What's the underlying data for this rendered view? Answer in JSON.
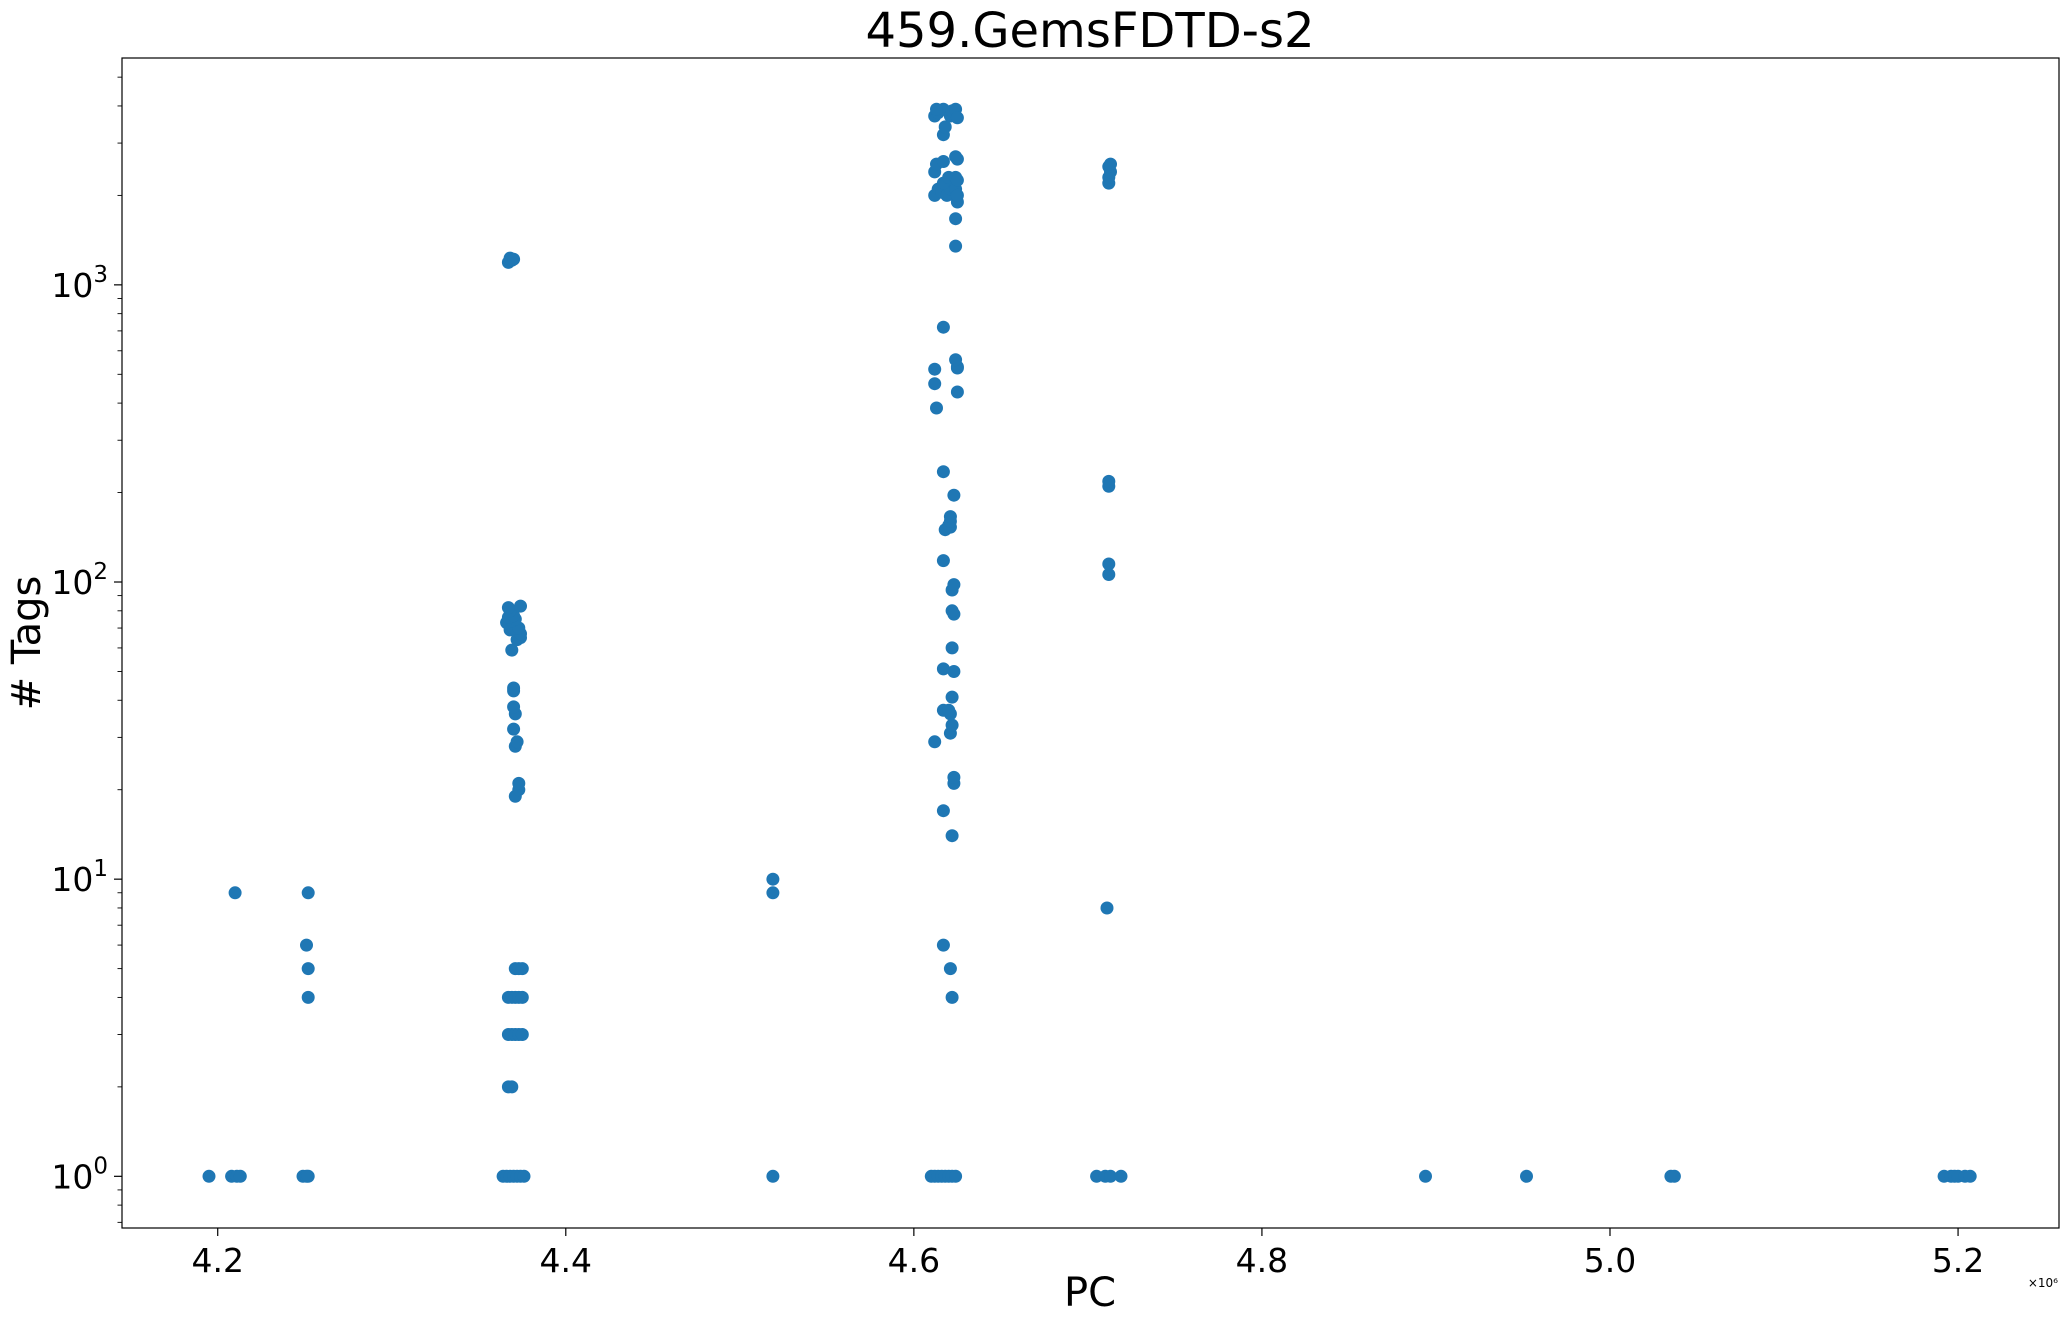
{
  "chart_data": {
    "type": "scatter",
    "title": "459.GemsFDTD-s2",
    "xlabel": "PC",
    "ylabel": "# Tags",
    "x_offset_label": "×10⁶",
    "x_ticks": [
      "4.2",
      "4.4",
      "4.6",
      "4.8",
      "5.0",
      "5.2"
    ],
    "x_tick_values": [
      4.2,
      4.4,
      4.6,
      4.8,
      5.0,
      5.2
    ],
    "y_ticks": [
      {
        "value": 1,
        "base": "10",
        "exp": "0"
      },
      {
        "value": 10,
        "base": "10",
        "exp": "1"
      },
      {
        "value": 100,
        "base": "10",
        "exp": "2"
      },
      {
        "value": 1000,
        "base": "10",
        "exp": "3"
      }
    ],
    "y_scale": "log",
    "xlim": [
      4.145,
      5.258
    ],
    "ylim": [
      0.67,
      5800
    ],
    "grid": false,
    "marker_color": "#1f77b4",
    "points": [
      [
        4.195,
        1
      ],
      [
        4.208,
        1
      ],
      [
        4.211,
        1
      ],
      [
        4.213,
        1
      ],
      [
        4.21,
        9
      ],
      [
        4.249,
        1
      ],
      [
        4.251,
        1
      ],
      [
        4.252,
        1
      ],
      [
        4.251,
        6
      ],
      [
        4.252,
        5
      ],
      [
        4.252,
        4
      ],
      [
        4.252,
        9
      ],
      [
        4.364,
        1
      ],
      [
        4.366,
        1
      ],
      [
        4.368,
        1
      ],
      [
        4.37,
        1
      ],
      [
        4.372,
        1
      ],
      [
        4.374,
        1
      ],
      [
        4.376,
        1
      ],
      [
        4.367,
        2
      ],
      [
        4.369,
        2
      ],
      [
        4.367,
        3
      ],
      [
        4.369,
        3
      ],
      [
        4.371,
        3
      ],
      [
        4.373,
        3
      ],
      [
        4.375,
        3
      ],
      [
        4.367,
        4
      ],
      [
        4.369,
        4
      ],
      [
        4.371,
        4
      ],
      [
        4.373,
        4
      ],
      [
        4.375,
        4
      ],
      [
        4.371,
        5
      ],
      [
        4.373,
        5
      ],
      [
        4.375,
        5
      ],
      [
        4.371,
        19
      ],
      [
        4.373,
        20
      ],
      [
        4.373,
        21
      ],
      [
        4.371,
        28
      ],
      [
        4.372,
        29
      ],
      [
        4.37,
        32
      ],
      [
        4.371,
        36
      ],
      [
        4.37,
        38
      ],
      [
        4.37,
        43
      ],
      [
        4.37,
        44
      ],
      [
        4.369,
        59
      ],
      [
        4.372,
        64
      ],
      [
        4.374,
        65
      ],
      [
        4.374,
        67
      ],
      [
        4.368,
        69
      ],
      [
        4.37,
        70
      ],
      [
        4.373,
        70
      ],
      [
        4.366,
        73
      ],
      [
        4.369,
        74
      ],
      [
        4.371,
        75
      ],
      [
        4.367,
        76
      ],
      [
        4.37,
        77
      ],
      [
        4.368,
        80
      ],
      [
        4.367,
        82
      ],
      [
        4.374,
        83
      ],
      [
        4.367,
        1190
      ],
      [
        4.369,
        1210
      ],
      [
        4.368,
        1230
      ],
      [
        4.37,
        1220
      ],
      [
        4.519,
        1
      ],
      [
        4.519,
        9
      ],
      [
        4.519,
        10
      ],
      [
        4.61,
        1
      ],
      [
        4.612,
        1
      ],
      [
        4.614,
        1
      ],
      [
        4.616,
        1
      ],
      [
        4.618,
        1
      ],
      [
        4.62,
        1
      ],
      [
        4.622,
        1
      ],
      [
        4.624,
        1
      ],
      [
        4.622,
        4
      ],
      [
        4.621,
        5
      ],
      [
        4.617,
        6
      ],
      [
        4.622,
        14
      ],
      [
        4.617,
        17
      ],
      [
        4.623,
        21
      ],
      [
        4.623,
        22
      ],
      [
        4.612,
        29
      ],
      [
        4.621,
        31
      ],
      [
        4.622,
        33
      ],
      [
        4.621,
        36
      ],
      [
        4.617,
        37
      ],
      [
        4.62,
        37
      ],
      [
        4.622,
        41
      ],
      [
        4.623,
        50
      ],
      [
        4.617,
        51
      ],
      [
        4.622,
        60
      ],
      [
        4.623,
        78
      ],
      [
        4.622,
        80
      ],
      [
        4.622,
        94
      ],
      [
        4.623,
        98
      ],
      [
        4.617,
        118
      ],
      [
        4.618,
        150
      ],
      [
        4.62,
        155
      ],
      [
        4.621,
        153
      ],
      [
        4.621,
        160
      ],
      [
        4.621,
        166
      ],
      [
        4.623,
        196
      ],
      [
        4.617,
        235
      ],
      [
        4.613,
        385
      ],
      [
        4.625,
        436
      ],
      [
        4.612,
        465
      ],
      [
        4.612,
        520
      ],
      [
        4.625,
        525
      ],
      [
        4.625,
        530
      ],
      [
        4.624,
        560
      ],
      [
        4.617,
        720
      ],
      [
        4.624,
        1350
      ],
      [
        4.624,
        1670
      ],
      [
        4.612,
        2000
      ],
      [
        4.625,
        1900
      ],
      [
        4.614,
        2100
      ],
      [
        4.616,
        2050
      ],
      [
        4.619,
        2000
      ],
      [
        4.621,
        2100
      ],
      [
        4.624,
        2100
      ],
      [
        4.625,
        2000
      ],
      [
        4.617,
        2200
      ],
      [
        4.612,
        2400
      ],
      [
        4.62,
        2300
      ],
      [
        4.624,
        2300
      ],
      [
        4.625,
        2250
      ],
      [
        4.613,
        2550
      ],
      [
        4.617,
        2600
      ],
      [
        4.624,
        2700
      ],
      [
        4.625,
        2650
      ],
      [
        4.617,
        3200
      ],
      [
        4.618,
        3400
      ],
      [
        4.612,
        3700
      ],
      [
        4.614,
        3800
      ],
      [
        4.617,
        3900
      ],
      [
        4.621,
        3700
      ],
      [
        4.622,
        3850
      ],
      [
        4.624,
        3900
      ],
      [
        4.625,
        3650
      ],
      [
        4.613,
        3900
      ],
      [
        4.705,
        1
      ],
      [
        4.71,
        1
      ],
      [
        4.713,
        1
      ],
      [
        4.719,
        1
      ],
      [
        4.711,
        8
      ],
      [
        4.712,
        106
      ],
      [
        4.712,
        115
      ],
      [
        4.712,
        210
      ],
      [
        4.712,
        218
      ],
      [
        4.712,
        2200
      ],
      [
        4.712,
        2300
      ],
      [
        4.713,
        2400
      ],
      [
        4.712,
        2500
      ],
      [
        4.713,
        2550
      ],
      [
        4.894,
        1
      ],
      [
        4.952,
        1
      ],
      [
        5.035,
        1
      ],
      [
        5.037,
        1
      ],
      [
        5.192,
        1
      ],
      [
        5.196,
        1
      ],
      [
        5.198,
        1
      ],
      [
        5.2,
        1
      ],
      [
        5.204,
        1
      ],
      [
        5.207,
        1
      ]
    ]
  }
}
